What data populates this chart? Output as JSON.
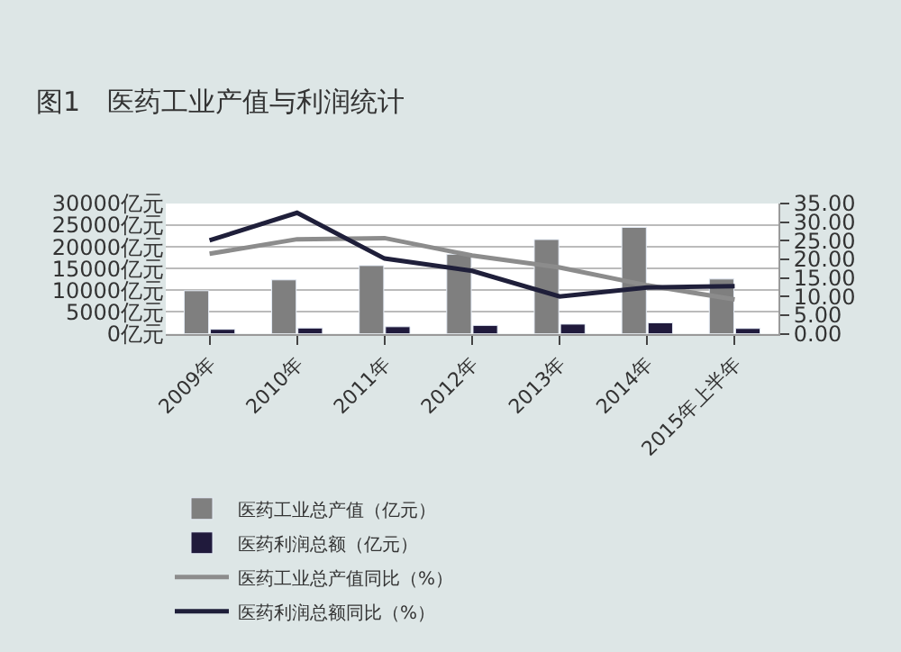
{
  "chart_data": {
    "type": "bar",
    "title": "图1　医药工业产值与利润统计",
    "categories": [
      "2009年",
      "2010年",
      "2011年",
      "2012年",
      "2013年",
      "2014年",
      "2015年上半年"
    ],
    "series": [
      {
        "name": "医药工业总产值（亿元）",
        "color": "#7f7f7f",
        "values": [
          9900,
          12400,
          15700,
          18300,
          21700,
          24500,
          12600
        ]
      },
      {
        "name": "医药利润总额（亿元）",
        "color": "#201a3c",
        "values": [
          1000,
          1300,
          1600,
          1900,
          2200,
          2500,
          1200
        ]
      },
      {
        "name": "医药工业总产值同比（%）",
        "type": "line",
        "axis": "y2",
        "color": "#8c8c8c",
        "values": [
          21.5,
          25.4,
          25.7,
          21.0,
          17.8,
          13.0,
          9.2
        ]
      },
      {
        "name": "医药利润总额同比（%）",
        "type": "line",
        "axis": "y2",
        "color": "#1f1f3a",
        "values": [
          25.1,
          32.5,
          20.2,
          16.9,
          10.0,
          12.4,
          12.8
        ]
      }
    ],
    "ylim": [
      0,
      30000
    ],
    "yticks": [
      {
        "value": 0,
        "label": "0亿元"
      },
      {
        "value": 5000,
        "label": "5000亿元"
      },
      {
        "value": 10000,
        "label": "10000亿元"
      },
      {
        "value": 15000,
        "label": "15000亿元"
      },
      {
        "value": 20000,
        "label": "20000亿元"
      },
      {
        "value": 25000,
        "label": "25000亿元"
      },
      {
        "value": 30000,
        "label": "30000亿元"
      }
    ],
    "y2lim": [
      0,
      35
    ],
    "y2ticks": [
      {
        "value": 0,
        "label": "0.00"
      },
      {
        "value": 5,
        "label": "5.00"
      },
      {
        "value": 10,
        "label": "10.00"
      },
      {
        "value": 15,
        "label": "15.00"
      },
      {
        "value": 20,
        "label": "20.00"
      },
      {
        "value": 25,
        "label": "25.00"
      },
      {
        "value": 30,
        "label": "30.00"
      },
      {
        "value": 35,
        "label": "35.00"
      }
    ],
    "grid": "y",
    "legend": "bottom",
    "marker": "none",
    "line_style": "solid"
  }
}
